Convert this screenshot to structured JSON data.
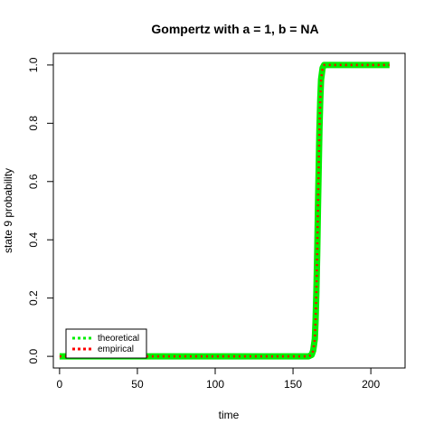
{
  "chart_data": {
    "type": "line",
    "title": "Gompertz with a = 1, b = NA",
    "xlabel": "time",
    "ylabel": "state 9 probability",
    "xlim": [
      -4,
      222
    ],
    "ylim": [
      -0.04,
      1.04
    ],
    "xticks": [
      0,
      50,
      100,
      150,
      200
    ],
    "yticks": [
      0.0,
      0.2,
      0.4,
      0.6,
      0.8,
      1.0
    ],
    "xtick_labels": [
      "0",
      "50",
      "100",
      "150",
      "200"
    ],
    "ytick_labels": [
      "0.0",
      "0.2",
      "0.4",
      "0.6",
      "0.8",
      "1.0"
    ],
    "grid": false,
    "legend_position": "bottom-left",
    "series": [
      {
        "name": "theoretical",
        "color": "#00ee00",
        "style": "dotted-thick",
        "x": [
          0,
          50,
          100,
          150,
          160,
          162,
          163,
          164,
          164.5,
          165,
          165.5,
          166,
          166.5,
          167,
          167.5,
          168,
          169,
          170,
          180,
          200,
          212
        ],
        "y": [
          0,
          0,
          0,
          0,
          0,
          0.005,
          0.02,
          0.06,
          0.12,
          0.22,
          0.35,
          0.5,
          0.65,
          0.78,
          0.88,
          0.95,
          0.99,
          1.0,
          1.0,
          1.0,
          1.0
        ]
      },
      {
        "name": "empirical",
        "color": "#ff0000",
        "style": "dotted",
        "x": [
          0,
          50,
          100,
          150,
          160,
          162,
          163,
          164,
          164.5,
          165,
          165.5,
          166,
          166.5,
          167,
          167.5,
          168,
          169,
          170,
          180,
          200,
          212
        ],
        "y": [
          0,
          0,
          0,
          0,
          0,
          0.005,
          0.02,
          0.06,
          0.12,
          0.22,
          0.35,
          0.5,
          0.65,
          0.78,
          0.88,
          0.95,
          0.99,
          1.0,
          1.0,
          1.0,
          1.0
        ]
      }
    ]
  }
}
